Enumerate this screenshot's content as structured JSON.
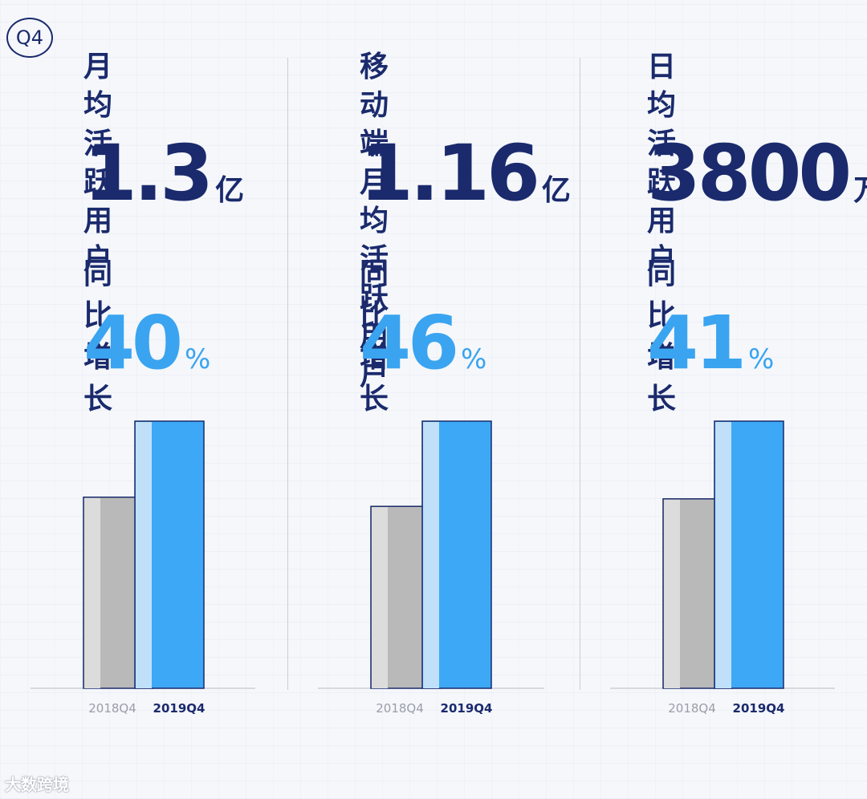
{
  "badge": "Q4",
  "watermark": "大数跨境",
  "colors": {
    "navy": "#1a2a6c",
    "bar_2018": "#b9b9b9",
    "bar_2018_shade": "#dcdcdc",
    "bar_2019": "#3da8f5",
    "bar_2019_shade": "#bfe0f8",
    "growth": "#3aa4f0"
  },
  "chart_data": [
    {
      "type": "bar",
      "title": "月均\n活跃用户",
      "value": "1.3",
      "unit": "亿",
      "growth_label": "同比增长",
      "growth": "40",
      "growth_unit": "%",
      "categories": [
        "2018Q4",
        "2019Q4"
      ],
      "values": [
        0.93,
        1.3
      ]
    },
    {
      "type": "bar",
      "title": "移动端月均\n活跃用户",
      "value": "1.16",
      "unit": "亿",
      "growth_label": "同比增长",
      "growth": "46",
      "growth_unit": "%",
      "categories": [
        "2018Q4",
        "2019Q4"
      ],
      "values": [
        0.79,
        1.16
      ]
    },
    {
      "type": "bar",
      "title": "日均\n活跃用户",
      "value": "3800",
      "unit": "万",
      "growth_label": "同比增长",
      "growth": "41",
      "growth_unit": "%",
      "categories": [
        "2018Q4",
        "2019Q4"
      ],
      "values": [
        2695,
        3800
      ]
    }
  ]
}
